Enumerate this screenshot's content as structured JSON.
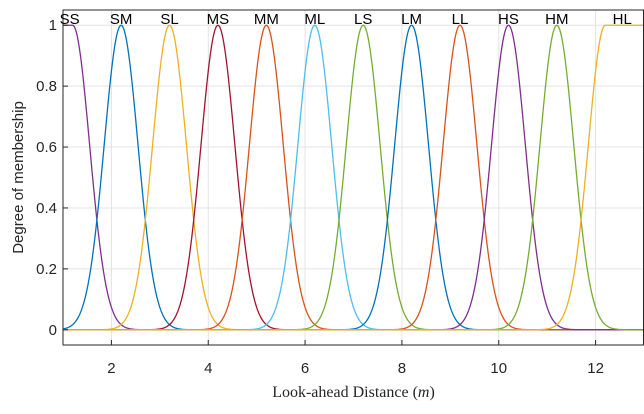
{
  "chart_data": {
    "type": "line",
    "xlabel": "Look-ahead Distance (m)",
    "ylabel": "Degree of membership",
    "xlim": [
      1,
      13
    ],
    "ylim": [
      -0.05,
      1.05
    ],
    "xticks": [
      2,
      4,
      6,
      8,
      10,
      12
    ],
    "yticks": [
      0,
      0.2,
      0.4,
      0.6,
      0.8,
      1
    ],
    "grid": true,
    "sigma": 0.35,
    "series": [
      {
        "name": "SS",
        "shape": "left-shoulder",
        "center": 1.2,
        "color": "#7E2F8E"
      },
      {
        "name": "SM",
        "shape": "gauss",
        "center": 2.2,
        "color": "#0072BD"
      },
      {
        "name": "SL",
        "shape": "gauss",
        "center": 3.2,
        "color": "#EDB120"
      },
      {
        "name": "MS",
        "shape": "gauss",
        "center": 4.2,
        "color": "#A2142F"
      },
      {
        "name": "MM",
        "shape": "gauss",
        "center": 5.2,
        "color": "#D95319"
      },
      {
        "name": "ML",
        "shape": "gauss",
        "center": 6.2,
        "color": "#4DBEEE"
      },
      {
        "name": "LS",
        "shape": "gauss",
        "center": 7.2,
        "color": "#77AC30"
      },
      {
        "name": "LM",
        "shape": "gauss",
        "center": 8.2,
        "color": "#0072BD"
      },
      {
        "name": "LL",
        "shape": "gauss",
        "center": 9.2,
        "color": "#D95319"
      },
      {
        "name": "HS",
        "shape": "gauss",
        "center": 10.2,
        "color": "#7E2F8E"
      },
      {
        "name": "HM",
        "shape": "gauss",
        "center": 11.2,
        "color": "#77AC30"
      },
      {
        "name": "HL",
        "shape": "right-shoulder",
        "center": 12.2,
        "color": "#EDB120"
      }
    ]
  }
}
